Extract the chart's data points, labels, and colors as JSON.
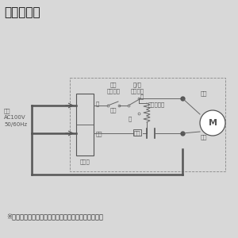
{
  "title": "《結線図》",
  "footnote": "※太線部分の結線は、お客様にて施工してください。",
  "bg_color": "#d8d8d8",
  "line_color": "#555555",
  "thin_color": "#666666",
  "title_fontsize": 11,
  "footnote_fontsize": 6.0,
  "label_fontsize": 5.0,
  "power_label": "電源\nAC100V\n50/60Hz",
  "terminal_label": "端子台",
  "shiro_label": "シロ",
  "aka_label": "アカ",
  "motor_label": "M",
  "dengen_sw_label": "電源\nスイッチ",
  "kyojaku_sw_label": "強/弱\nスイッチ",
  "condenser_label": "コンデンサ",
  "ki_label": "キ",
  "momo_label": "モモ",
  "ao_label": "アオ",
  "kyou_label": "強",
  "jaku_label": "弱"
}
